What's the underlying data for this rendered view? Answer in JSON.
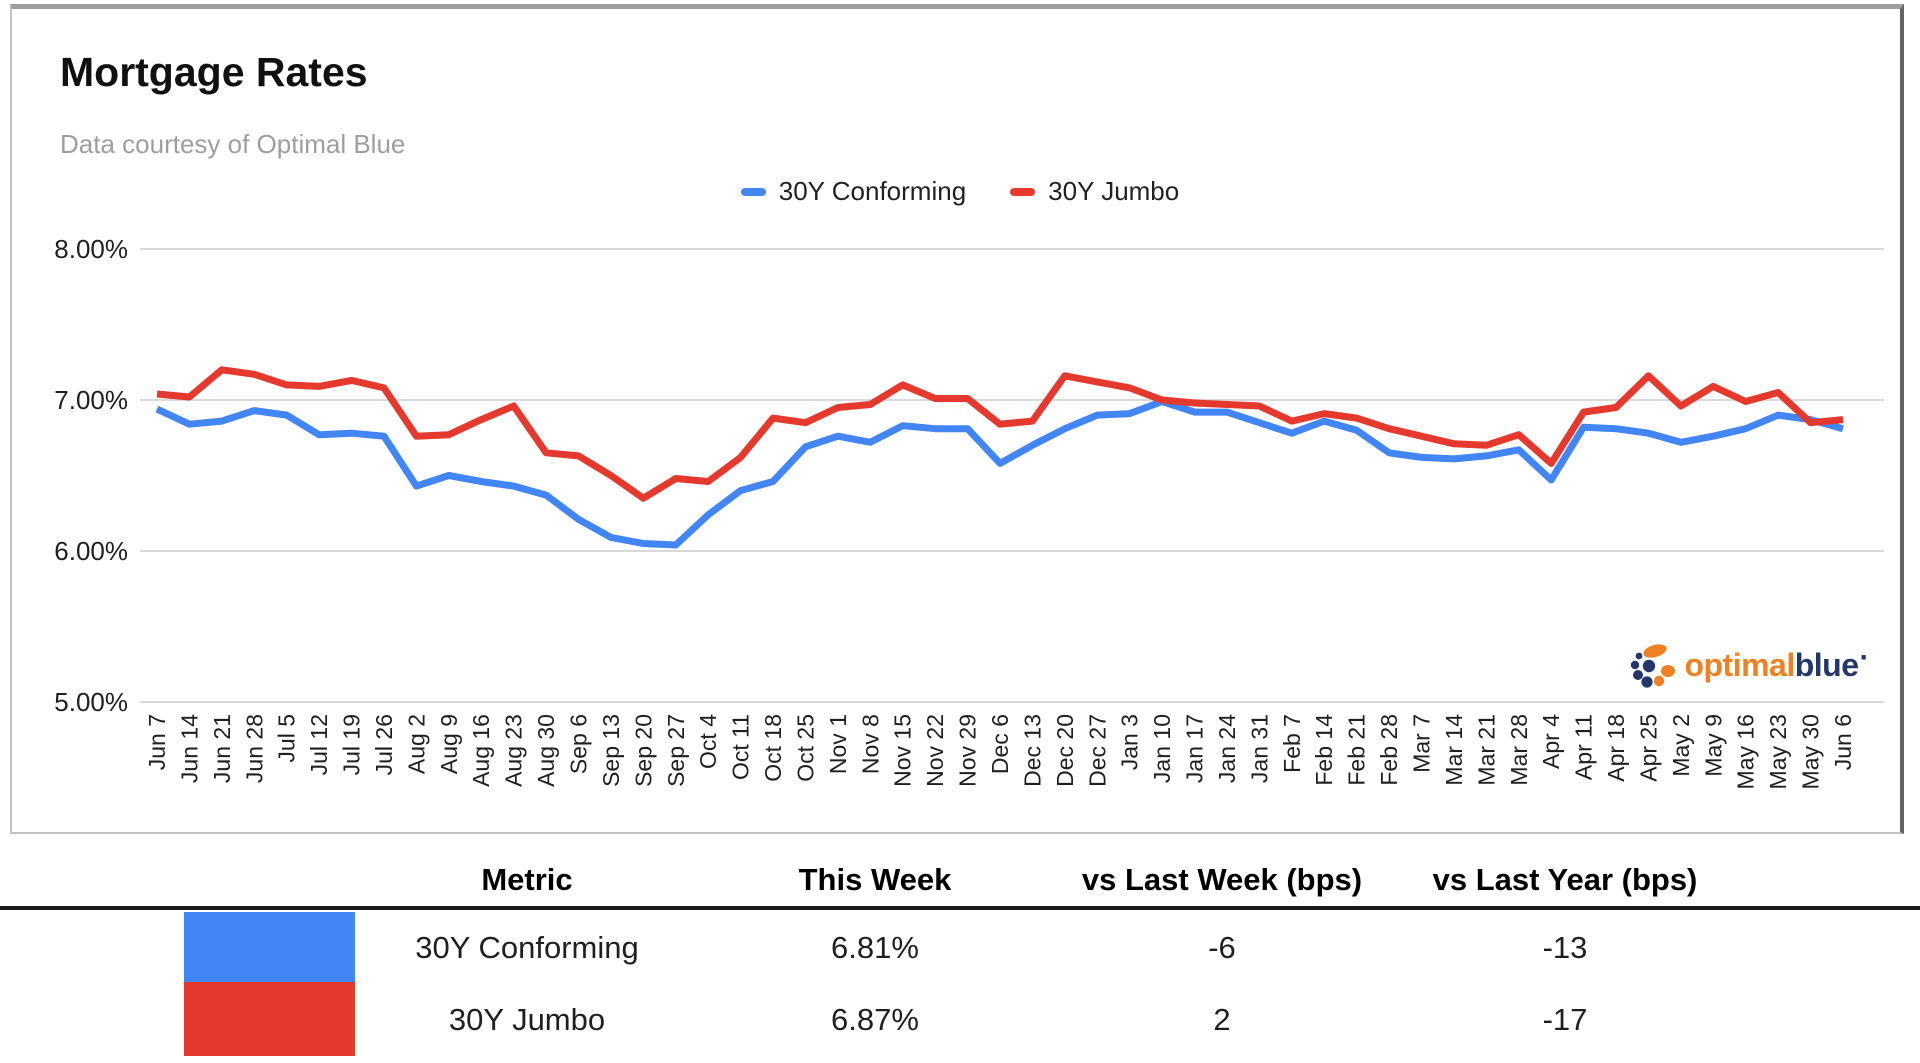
{
  "header": {
    "title": "Mortgage Rates",
    "subtitle": "Data courtesy of Optimal Blue"
  },
  "chart_data": {
    "type": "line",
    "x": [
      "Jun 7",
      "Jun 14",
      "Jun 21",
      "Jun 28",
      "Jul 5",
      "Jul 12",
      "Jul 19",
      "Jul 26",
      "Aug 2",
      "Aug 9",
      "Aug 16",
      "Aug 23",
      "Aug 30",
      "Sep 6",
      "Sep 13",
      "Sep 20",
      "Sep 27",
      "Oct 4",
      "Oct 11",
      "Oct 18",
      "Oct 25",
      "Nov 1",
      "Nov 8",
      "Nov 15",
      "Nov 22",
      "Nov 29",
      "Dec 6",
      "Dec 13",
      "Dec 20",
      "Dec 27",
      "Jan 3",
      "Jan 10",
      "Jan 17",
      "Jan 24",
      "Jan 31",
      "Feb 7",
      "Feb 14",
      "Feb 21",
      "Feb 28",
      "Mar 7",
      "Mar 14",
      "Mar 21",
      "Mar 28",
      "Apr 4",
      "Apr 11",
      "Apr 18",
      "Apr 25",
      "May 2",
      "May 9",
      "May 16",
      "May 23",
      "May 30",
      "Jun 6"
    ],
    "series": [
      {
        "name": "30Y Conforming",
        "color": "#4285F4",
        "values": [
          6.94,
          6.84,
          6.86,
          6.93,
          6.9,
          6.77,
          6.78,
          6.76,
          6.43,
          6.5,
          6.46,
          6.43,
          6.37,
          6.21,
          6.09,
          6.05,
          6.04,
          6.24,
          6.4,
          6.46,
          6.69,
          6.76,
          6.72,
          6.83,
          6.81,
          6.81,
          6.58,
          6.7,
          6.81,
          6.9,
          6.91,
          6.99,
          6.92,
          6.92,
          6.85,
          6.78,
          6.86,
          6.8,
          6.65,
          6.62,
          6.61,
          6.63,
          6.67,
          6.47,
          6.82,
          6.81,
          6.78,
          6.72,
          6.76,
          6.81,
          6.9,
          6.87,
          6.81
        ]
      },
      {
        "name": "30Y Jumbo",
        "color": "#E4392C",
        "values": [
          7.04,
          7.02,
          7.2,
          7.17,
          7.1,
          7.09,
          7.13,
          7.08,
          6.76,
          6.77,
          6.87,
          6.96,
          6.65,
          6.63,
          6.5,
          6.35,
          6.48,
          6.46,
          6.62,
          6.88,
          6.85,
          6.95,
          6.97,
          7.1,
          7.01,
          7.01,
          6.84,
          6.86,
          7.16,
          7.12,
          7.08,
          7.0,
          6.98,
          6.97,
          6.96,
          6.86,
          6.91,
          6.88,
          6.81,
          6.76,
          6.71,
          6.7,
          6.77,
          6.58,
          6.92,
          6.95,
          7.16,
          6.96,
          7.09,
          6.99,
          7.05,
          6.85,
          6.87
        ]
      }
    ],
    "yticks": [
      {
        "label": "8.00%",
        "value": 8
      },
      {
        "label": "7.00%",
        "value": 7
      },
      {
        "label": "6.00%",
        "value": 6
      },
      {
        "label": "5.00%",
        "value": 5
      }
    ],
    "ylim": [
      5,
      8
    ],
    "grid": true,
    "legend_position": "top",
    "gridline_color": "#d9d9d9",
    "axis_text_color": "#1f1f1f"
  },
  "logo": {
    "word_orange": "optimal",
    "word_navy": "blue",
    "trademark_dot": "·",
    "orange": "#F08122",
    "navy": "#24376B"
  },
  "table": {
    "headers": [
      "Metric",
      "This Week",
      "vs Last Week (bps)",
      "vs Last Year (bps)"
    ],
    "rows": [
      {
        "metric": "30Y Conforming",
        "this_week": "6.81%",
        "vs_last_week": "-6",
        "vs_last_year": "-13",
        "swatch": "#4285F4"
      },
      {
        "metric": "30Y Jumbo",
        "this_week": "6.87%",
        "vs_last_week": "2",
        "vs_last_year": "-17",
        "swatch": "#E4392C"
      }
    ]
  }
}
